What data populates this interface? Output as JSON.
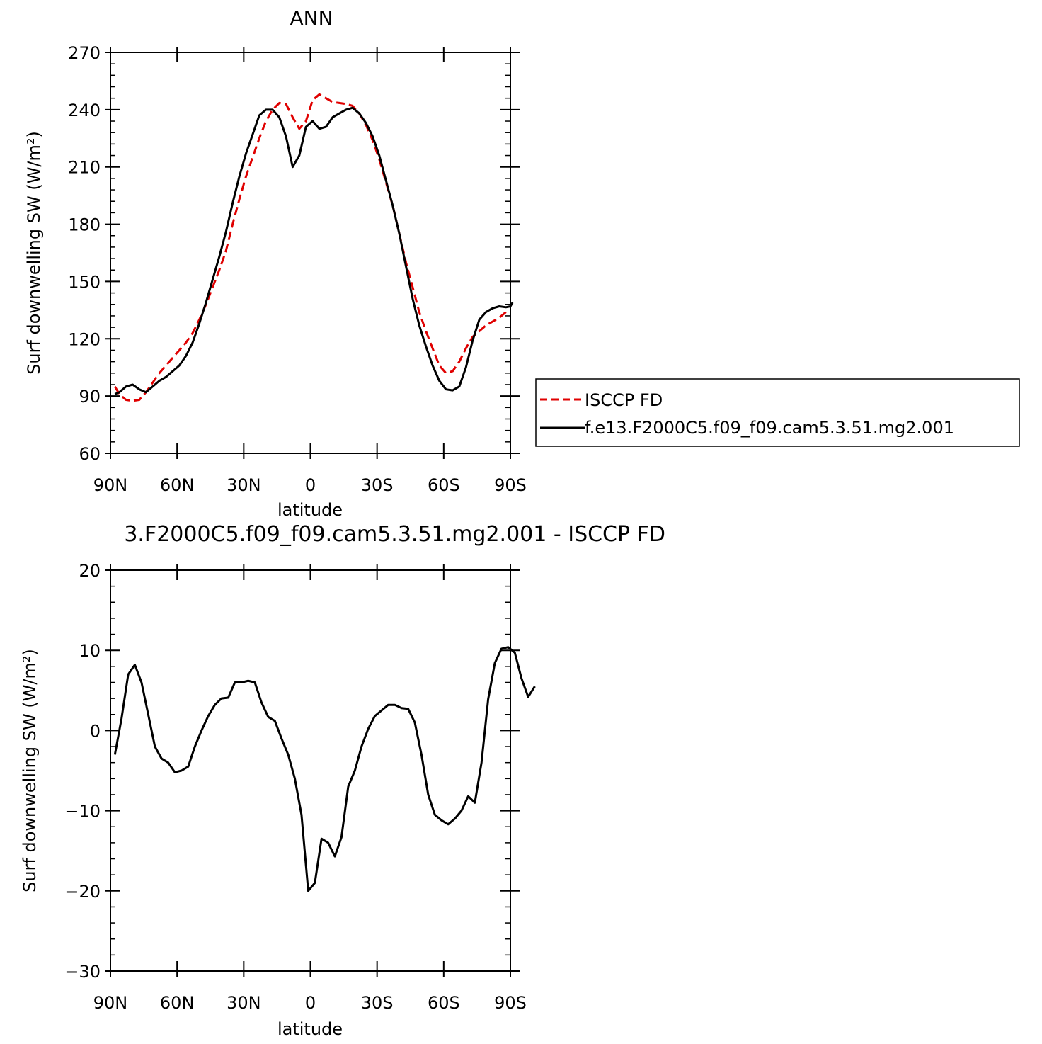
{
  "chart_data": [
    {
      "type": "line",
      "title": "ANN",
      "xlabel": "latitude",
      "ylabel": "Surf downwelling SW (W/m²)",
      "xlim": [
        90,
        -90
      ],
      "ylim": [
        60,
        270
      ],
      "xticks": [
        90,
        60,
        30,
        0,
        -30,
        -60,
        -90
      ],
      "xtick_labels": [
        "90N",
        "60N",
        "30N",
        "0",
        "30S",
        "60S",
        "90S"
      ],
      "yticks": [
        60,
        90,
        120,
        150,
        180,
        210,
        240,
        270
      ],
      "ytick_labels": [
        "60",
        "90",
        "120",
        "150",
        "180",
        "210",
        "240",
        "270"
      ],
      "legend": {
        "placement": "right",
        "entries": [
          "ISCCP FD",
          "f.e13.F2000C5.f09_f09.cam5.3.51.mg2.001"
        ]
      },
      "series": [
        {
          "name": "ISCCP FD",
          "color": "#e00000",
          "style": "dashed",
          "points": [
            [
              88,
              95
            ],
            [
              86,
              91
            ],
            [
              83,
              88
            ],
            [
              80,
              87.5
            ],
            [
              77,
              88
            ],
            [
              74,
              92
            ],
            [
              71,
              97
            ],
            [
              68,
              102
            ],
            [
              65,
              106
            ],
            [
              62,
              110
            ],
            [
              59,
              114
            ],
            [
              56,
              118
            ],
            [
              53,
              123
            ],
            [
              50,
              130
            ],
            [
              47,
              138
            ],
            [
              44,
              147
            ],
            [
              41,
              156
            ],
            [
              38,
              166
            ],
            [
              35,
              180
            ],
            [
              32,
              193
            ],
            [
              29,
              205
            ],
            [
              26,
              215
            ],
            [
              23,
              225
            ],
            [
              20,
              234
            ],
            [
              17,
              240
            ],
            [
              14,
              243.5
            ],
            [
              11,
              243
            ],
            [
              8,
              236
            ],
            [
              5,
              230
            ],
            [
              2,
              234
            ],
            [
              -1,
              245
            ],
            [
              -4,
              248
            ],
            [
              -7,
              246
            ],
            [
              -10,
              244
            ],
            [
              -13,
              243.5
            ],
            [
              -16,
              243
            ],
            [
              -19,
              242
            ],
            [
              -22,
              238
            ],
            [
              -25,
              232
            ],
            [
              -28,
              224
            ],
            [
              -31,
              214
            ],
            [
              -34,
              202
            ],
            [
              -37,
              190
            ],
            [
              -40,
              175
            ],
            [
              -43,
              160
            ],
            [
              -46,
              147
            ],
            [
              -49,
              134
            ],
            [
              -52,
              124
            ],
            [
              -55,
              115
            ],
            [
              -58,
              106
            ],
            [
              -61,
              102
            ],
            [
              -64,
              103
            ],
            [
              -67,
              108
            ],
            [
              -70,
              115
            ],
            [
              -73,
              121
            ],
            [
              -76,
              124
            ],
            [
              -79,
              127
            ],
            [
              -82,
              129
            ],
            [
              -85,
              131
            ],
            [
              -88,
              134
            ]
          ]
        },
        {
          "name": "f.e13.F2000C5.f09_f09.cam5.3.51.mg2.001",
          "color": "#000000",
          "style": "solid",
          "points": [
            [
              88,
              91
            ],
            [
              86,
              92
            ],
            [
              83,
              95
            ],
            [
              80,
              96
            ],
            [
              77,
              93.5
            ],
            [
              74,
              92
            ],
            [
              71,
              95
            ],
            [
              68,
              98
            ],
            [
              65,
              100
            ],
            [
              62,
              103
            ],
            [
              59,
              106
            ],
            [
              56,
              111
            ],
            [
              53,
              118
            ],
            [
              50,
              128
            ],
            [
              47,
              139
            ],
            [
              44,
              151
            ],
            [
              41,
              163
            ],
            [
              38,
              176
            ],
            [
              35,
              191
            ],
            [
              32,
              205
            ],
            [
              29,
              217
            ],
            [
              26,
              227
            ],
            [
              23,
              237
            ],
            [
              20,
              240
            ],
            [
              17,
              240
            ],
            [
              14,
              236
            ],
            [
              11,
              226
            ],
            [
              8,
              210
            ],
            [
              5,
              216
            ],
            [
              2,
              231
            ],
            [
              -1,
              234
            ],
            [
              -4,
              230
            ],
            [
              -7,
              231
            ],
            [
              -10,
              236
            ],
            [
              -13,
              238
            ],
            [
              -16,
              240
            ],
            [
              -19,
              241
            ],
            [
              -22,
              238
            ],
            [
              -25,
              233
            ],
            [
              -28,
              226
            ],
            [
              -31,
              216
            ],
            [
              -34,
              203
            ],
            [
              -37,
              190
            ],
            [
              -40,
              175
            ],
            [
              -43,
              158
            ],
            [
              -46,
              141
            ],
            [
              -49,
              127
            ],
            [
              -52,
              116
            ],
            [
              -55,
              106
            ],
            [
              -58,
              98
            ],
            [
              -61,
              93.5
            ],
            [
              -64,
              93
            ],
            [
              -67,
              95
            ],
            [
              -70,
              105
            ],
            [
              -73,
              119
            ],
            [
              -76,
              130
            ],
            [
              -79,
              134
            ],
            [
              -82,
              136
            ],
            [
              -85,
              137
            ],
            [
              -88,
              136.5
            ],
            [
              -90,
              137
            ],
            [
              -91,
              139
            ]
          ]
        }
      ]
    },
    {
      "type": "line",
      "title": "3.F2000C5.f09_f09.cam5.3.51.mg2.001 - ISCCP FD",
      "xlabel": "latitude",
      "ylabel": "Surf downwelling SW (W/m²)",
      "xlim": [
        90,
        -90
      ],
      "ylim": [
        -30,
        20
      ],
      "xticks": [
        90,
        60,
        30,
        0,
        -30,
        -60,
        -90
      ],
      "xtick_labels": [
        "90N",
        "60N",
        "30N",
        "0",
        "30S",
        "60S",
        "90S"
      ],
      "yticks": [
        -30,
        -20,
        -10,
        0,
        10,
        20
      ],
      "ytick_labels": [
        "−30",
        "−20",
        "−10",
        "0",
        "10",
        "20"
      ],
      "series": [
        {
          "color": "#000000",
          "style": "solid",
          "points": [
            [
              88,
              -3
            ],
            [
              85,
              1.5
            ],
            [
              82,
              7
            ],
            [
              79,
              8.2
            ],
            [
              76,
              6
            ],
            [
              73,
              2
            ],
            [
              70,
              -2
            ],
            [
              67,
              -3.5
            ],
            [
              64,
              -4
            ],
            [
              61,
              -5.2
            ],
            [
              58,
              -5
            ],
            [
              55,
              -4.5
            ],
            [
              52,
              -2
            ],
            [
              49,
              0
            ],
            [
              46,
              1.8
            ],
            [
              43,
              3.2
            ],
            [
              40,
              4
            ],
            [
              37,
              4.1
            ],
            [
              34,
              6
            ],
            [
              31,
              6
            ],
            [
              28,
              6.2
            ],
            [
              25,
              6
            ],
            [
              22,
              3.5
            ],
            [
              19,
              1.7
            ],
            [
              16,
              1.2
            ],
            [
              13,
              -1
            ],
            [
              10,
              -3
            ],
            [
              7,
              -6
            ],
            [
              4,
              -10.5
            ],
            [
              1,
              -20
            ],
            [
              -2,
              -19
            ],
            [
              -5,
              -13.5
            ],
            [
              -8,
              -14
            ],
            [
              -11,
              -15.7
            ],
            [
              -14,
              -13.3
            ],
            [
              -17,
              -7
            ],
            [
              -20,
              -5
            ],
            [
              -23,
              -2
            ],
            [
              -26,
              0.2
            ],
            [
              -29,
              1.8
            ],
            [
              -32,
              2.5
            ],
            [
              -35,
              3.2
            ],
            [
              -38,
              3.2
            ],
            [
              -41,
              2.8
            ],
            [
              -44,
              2.7
            ],
            [
              -47,
              1
            ],
            [
              -50,
              -3
            ],
            [
              -53,
              -8
            ],
            [
              -56,
              -10.5
            ],
            [
              -59,
              -11.2
            ],
            [
              -62,
              -11.7
            ],
            [
              -65,
              -11
            ],
            [
              -68,
              -10
            ],
            [
              -71,
              -8.2
            ],
            [
              -74,
              -9
            ],
            [
              -77,
              -4
            ],
            [
              -80,
              3.9
            ],
            [
              -83,
              8.4
            ],
            [
              -86,
              10.2
            ],
            [
              -89,
              10.4
            ],
            [
              -92,
              9.7
            ],
            [
              -95,
              6.5
            ],
            [
              -98,
              4.2
            ],
            [
              -101,
              5.5
            ]
          ]
        }
      ]
    }
  ]
}
